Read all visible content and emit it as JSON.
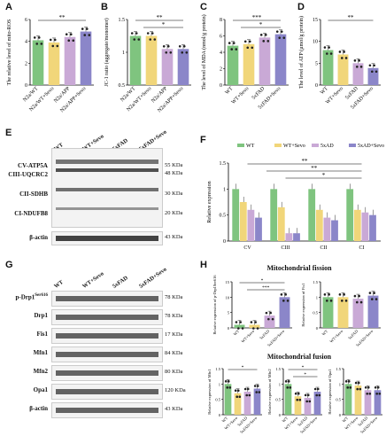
{
  "colors": {
    "wt": "#7fc47f",
    "wt_sevo": "#f1d67a",
    "fad": "#c9a9d6",
    "fad_sevo": "#8b86c9",
    "red": "#d9534f"
  },
  "panels": {
    "A": "A",
    "B": "B",
    "C": "C",
    "D": "D",
    "E": "E",
    "F": "F",
    "G": "G",
    "H": "H"
  },
  "chart_data": [
    {
      "id": "A",
      "type": "bar",
      "ylabel": "The relative level of mito-ROS",
      "categories": [
        "N2a/WT",
        "N2a/WT+Sevo",
        "N2a/APP",
        "N2a/APP+Sevo"
      ],
      "values": [
        4.1,
        3.9,
        4.4,
        4.9
      ],
      "ylim": [
        0,
        6
      ],
      "yticks": [
        0,
        2,
        4,
        6
      ],
      "sig": [
        "**"
      ]
    },
    {
      "id": "B",
      "type": "bar",
      "ylabel": "JC-1 ratio (aggregate/monomer)",
      "categories": [
        "N2a/WT",
        "N2a/WT+Sevo",
        "N2a/APP",
        "N2a/APP+Sevo"
      ],
      "values": [
        1.25,
        1.25,
        1.05,
        1.05
      ],
      "ylim": [
        0.5,
        1.5
      ],
      "yticks": [
        0.5,
        1.0,
        1.5
      ],
      "sig": [
        "**",
        "*"
      ]
    },
    {
      "id": "C",
      "type": "bar",
      "ylabel": "The level of MDA (nmol/g protein)",
      "categories": [
        "WT",
        "WT+Sevo",
        "5xFAD",
        "5xFAD+Sevo"
      ],
      "values": [
        4.8,
        5.0,
        5.8,
        6.2
      ],
      "ylim": [
        0,
        8
      ],
      "yticks": [
        0,
        2,
        4,
        6,
        8
      ],
      "sig": [
        "***",
        "*"
      ]
    },
    {
      "id": "D",
      "type": "bar",
      "ylabel": "The level of ATP (µmol/g protein)",
      "categories": [
        "WT",
        "WT+Sevo",
        "5xFAD",
        "5xFAD+Sevo"
      ],
      "values": [
        8.0,
        7.0,
        5.0,
        3.9
      ],
      "ylim": [
        0,
        15
      ],
      "yticks": [
        0,
        5,
        10,
        15
      ],
      "sig": [
        "**"
      ]
    },
    {
      "id": "F",
      "type": "bar",
      "ylabel": "Relative expression",
      "categories": [
        "CV",
        "CIII",
        "CII",
        "CI"
      ],
      "series": [
        {
          "name": "WT",
          "values": [
            1.0,
            1.0,
            1.0,
            1.0
          ]
        },
        {
          "name": "WT+Sevo",
          "values": [
            0.75,
            0.65,
            0.6,
            0.6
          ]
        },
        {
          "name": "5xFAD",
          "values": [
            0.6,
            0.15,
            0.45,
            0.55
          ]
        },
        {
          "name": "5xAD+Sevo",
          "values": [
            0.45,
            0.15,
            0.4,
            0.5
          ]
        }
      ],
      "ylim": [
        0,
        1.5
      ],
      "yticks": [
        0.0,
        0.5,
        1.0,
        1.5
      ],
      "sig": [
        "**",
        "**",
        "*"
      ]
    },
    {
      "id": "H1",
      "type": "bar",
      "ylabel": "Relative expression of p-Drp1Ser616",
      "categories": [
        "WT",
        "WT+Sevo",
        "5xFAD",
        "5xFAD+Sevo"
      ],
      "values": [
        1.0,
        1.0,
        4.0,
        10.0
      ],
      "ylim": [
        0,
        15
      ],
      "yticks": [
        0,
        5,
        10,
        15
      ],
      "sig": [
        "*",
        "***"
      ]
    },
    {
      "id": "H2",
      "type": "bar",
      "ylabel": "Relative expression of Fis1",
      "categories": [
        "WT",
        "WT+Sevo",
        "5xFAD",
        "5xFAD+Sevo"
      ],
      "values": [
        1.0,
        1.0,
        0.95,
        1.05
      ],
      "ylim": [
        0,
        1.5
      ],
      "yticks": [
        0.0,
        0.5,
        1.0,
        1.5
      ],
      "sig": []
    },
    {
      "id": "H3",
      "type": "bar",
      "ylabel": "Relative expression of Mfn1",
      "categories": [
        "WT",
        "WT+Sevo",
        "5xFAD",
        "5xFAD+Sevo"
      ],
      "values": [
        1.0,
        0.7,
        0.75,
        0.85
      ],
      "ylim": [
        0,
        1.5
      ],
      "yticks": [
        0.0,
        0.5,
        1.0,
        1.5
      ],
      "sig": [
        "*"
      ]
    },
    {
      "id": "H4",
      "type": "bar",
      "ylabel": "Relative expression of Mfn2",
      "categories": [
        "WT",
        "WT+Sevo",
        "5xFAD",
        "5xFAD+Sevo"
      ],
      "values": [
        1.0,
        0.6,
        0.55,
        0.75
      ],
      "ylim": [
        0,
        1.5
      ],
      "yticks": [
        0.0,
        0.5,
        1.0,
        1.5
      ],
      "sig": [
        "*",
        "*"
      ]
    },
    {
      "id": "H5",
      "type": "bar",
      "ylabel": "Relative expression of Opa1",
      "categories": [
        "WT",
        "WT+Sevo",
        "5xFAD",
        "5xFAD+Sevo"
      ],
      "values": [
        1.0,
        0.95,
        0.8,
        0.8
      ],
      "ylim": [
        0,
        1.5
      ],
      "yticks": [
        0.0,
        0.5,
        1.0,
        1.5
      ],
      "sig": []
    }
  ],
  "blot_E": {
    "lanes": [
      "WT",
      "WT+Sevo",
      "5xFAD",
      "5xFAD+Sevo"
    ],
    "rows": [
      {
        "label": "CV-ATP5A",
        "kda": "55 KDa"
      },
      {
        "label": "CIII-UQCRC2",
        "kda": "48 KDa"
      },
      {
        "label": "CII-SDHB",
        "kda": "30 KDa"
      },
      {
        "label": "CI-NDUFB8",
        "kda": "20 KDa"
      },
      {
        "label": "β-actin",
        "kda": "43 KDa"
      }
    ]
  },
  "blot_G": {
    "lanes": [
      "WT",
      "WT+Sevo",
      "5xFAD",
      "5xFAD+Sevo"
    ],
    "rows": [
      {
        "label": "p-Drp1",
        "sup": "Ser616",
        "kda": "78 KDa"
      },
      {
        "label": "Drp1",
        "kda": "78 KDa"
      },
      {
        "label": "Fis1",
        "kda": "17 KDa"
      },
      {
        "label": "Mfn1",
        "kda": "84 KDa"
      },
      {
        "label": "Mfn2",
        "kda": "80 KDa"
      },
      {
        "label": "Opa1",
        "kda": "120 KDa"
      },
      {
        "label": "β-actin",
        "kda": "43 KDa"
      }
    ]
  },
  "sections": {
    "fission": "Mitochondrial fission",
    "fusion": "Mitochondrial fusion"
  },
  "legend_F": [
    "WT",
    "WT+Sevo",
    "5xAD",
    "5xAD+Sevo"
  ]
}
